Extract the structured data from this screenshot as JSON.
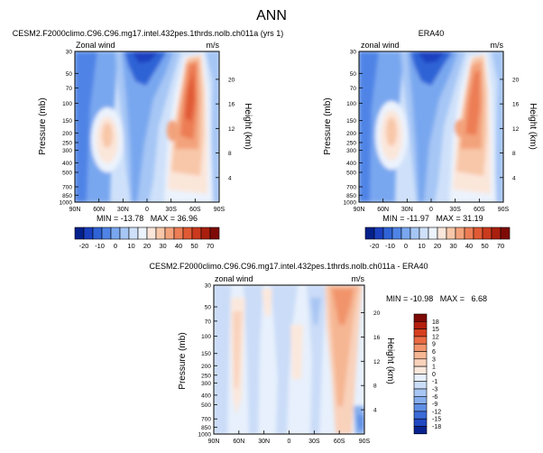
{
  "figure_title": "ANN",
  "chart_data": [
    {
      "type": "heatmap",
      "title": "CESM2.F2000climo.C96.C96.mg17.intel.432pes.1thrds.nolb.ch011a (yrs 1)",
      "variable": "Zonal wind",
      "units": "m/s",
      "ylabel": "Pressure (mb)",
      "ylabel_right": "Height (km)",
      "x_ticks": [
        "90N",
        "60N",
        "30N",
        "0",
        "30S",
        "60S",
        "90S"
      ],
      "y_ticks": [
        "30",
        "50",
        "70",
        "100",
        "150",
        "200",
        "250",
        "300",
        "400",
        "500",
        "700",
        "850",
        "1000"
      ],
      "height_ticks": [
        "20",
        "16",
        "12",
        "8",
        "4"
      ],
      "min": -13.78,
      "max": 36.96,
      "stats": "MIN = -13.78   MAX = 36.96"
    },
    {
      "type": "heatmap",
      "title": "ERA40",
      "variable": "zonal wind",
      "units": "m/s",
      "ylabel": "Pressure (mb)",
      "ylabel_right": "Height (km)",
      "x_ticks": [
        "90N",
        "60N",
        "30N",
        "0",
        "30S",
        "60S",
        "90S"
      ],
      "y_ticks": [
        "30",
        "50",
        "70",
        "100",
        "150",
        "200",
        "250",
        "300",
        "400",
        "500",
        "700",
        "850",
        "1000"
      ],
      "height_ticks": [
        "20",
        "16",
        "12",
        "8",
        "4"
      ],
      "min": -11.97,
      "max": 31.19,
      "stats": "MIN = -11.97   MAX = 31.19"
    },
    {
      "type": "heatmap",
      "title": "CESM2.F2000climo.C96.C96.mg17.intel.432pes.1thrds.nolb.ch011a - ERA40",
      "variable": "zonal wind",
      "units": "m/s",
      "ylabel": "Pressure (mb)",
      "ylabel_right": "Height (km)",
      "x_ticks": [
        "90N",
        "60N",
        "30N",
        "0",
        "30S",
        "60S",
        "90S"
      ],
      "y_ticks": [
        "30",
        "50",
        "70",
        "100",
        "150",
        "200",
        "250",
        "300",
        "400",
        "500",
        "700",
        "850",
        "1000"
      ],
      "height_ticks": [
        "20",
        "16",
        "12",
        "8",
        "4"
      ],
      "min": -10.98,
      "max": 6.68,
      "stats": "MIN = -10.98   MAX =   6.68"
    }
  ],
  "colorbar_top": {
    "labels": [
      "-20",
      "-10",
      "0",
      "10",
      "20",
      "30",
      "40",
      "50",
      "70"
    ],
    "colors": [
      "#04208b",
      "#1a3fbf",
      "#2f63d6",
      "#4f84e6",
      "#79a7ef",
      "#a6c6f5",
      "#cfe1fa",
      "#ecf3fd",
      "#fbe6da",
      "#f8c7a9",
      "#f3a37c",
      "#ec7d55",
      "#e05a34",
      "#ca3a1d",
      "#aa1f0e",
      "#7e0a06"
    ]
  },
  "colorbar_diff": {
    "labels": [
      "18",
      "15",
      "12",
      "9",
      "6",
      "3",
      "1",
      "0",
      "-1",
      "-3",
      "-6",
      "-9",
      "-12",
      "-15",
      "-18"
    ],
    "colors": [
      "#7e0a06",
      "#b3200f",
      "#d63f1e",
      "#ea6c44",
      "#f1946c",
      "#f5b693",
      "#f9d2bc",
      "#fbe8dd",
      "#e7f0fc",
      "#cadcf8",
      "#a8c6f3",
      "#86aeee",
      "#5f8fe4",
      "#3b6cd8",
      "#1f48c2",
      "#08238f"
    ]
  }
}
